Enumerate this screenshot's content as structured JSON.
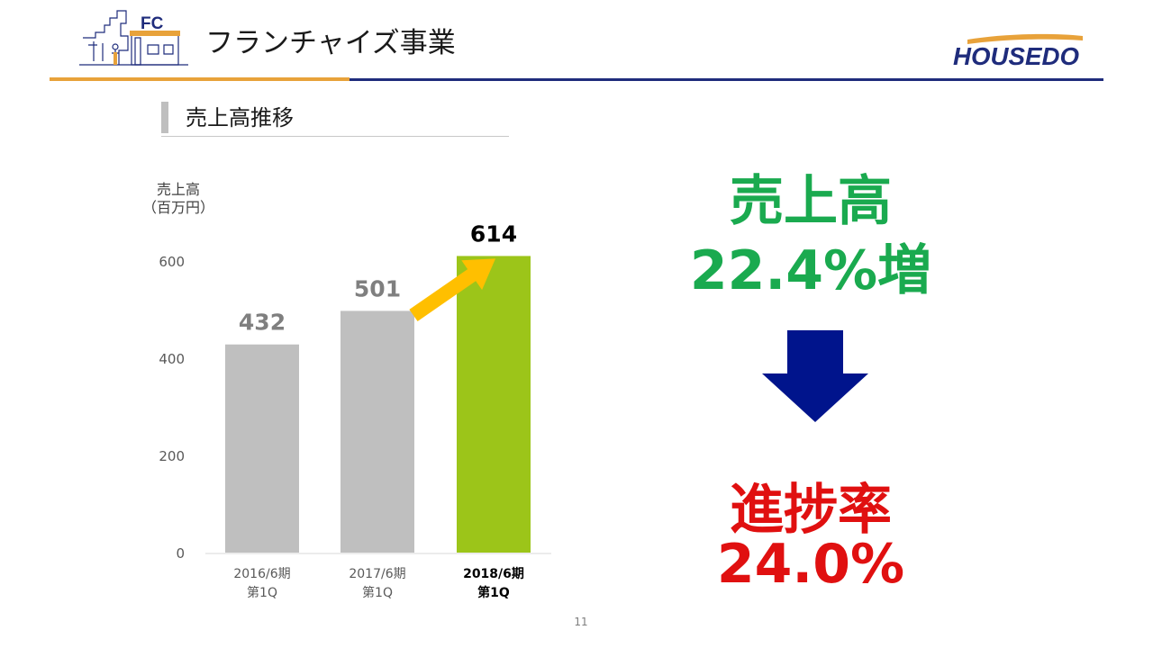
{
  "header": {
    "title": "フランチャイズ事業",
    "badge_text": "FC",
    "logo_text": "HOUSEDO",
    "accent_color": "#e8a23a",
    "brand_color": "#1f2c7c"
  },
  "section": {
    "title": "売上高推移"
  },
  "chart_data": {
    "type": "bar",
    "ylabel_lines": [
      "売上高",
      "（百万円）"
    ],
    "ylim": [
      0,
      600
    ],
    "yticks": [
      "0",
      "200",
      "400",
      "600"
    ],
    "grid": false,
    "categories": [
      {
        "line1": "2016/6期",
        "line2": "第1Q",
        "highlight": false
      },
      {
        "line1": "2017/6期",
        "line2": "第1Q",
        "highlight": false
      },
      {
        "line1": "2018/6期",
        "line2": "第1Q",
        "highlight": true
      }
    ],
    "values": [
      432,
      501,
      614
    ],
    "value_labels": [
      "432",
      "501",
      "614"
    ],
    "bar_colors": [
      "#bfbfbf",
      "#bfbfbf",
      "#9cc519"
    ],
    "arrow": {
      "from": 1,
      "to": 2,
      "color": "#ffbf00"
    }
  },
  "kpis": {
    "sales_label": "売上高",
    "sales_growth": "22.4%増",
    "progress_label": "進捗率",
    "progress_value": "24.0%",
    "down_arrow_color": "#00148c"
  },
  "footer": {
    "page_number": "11"
  }
}
